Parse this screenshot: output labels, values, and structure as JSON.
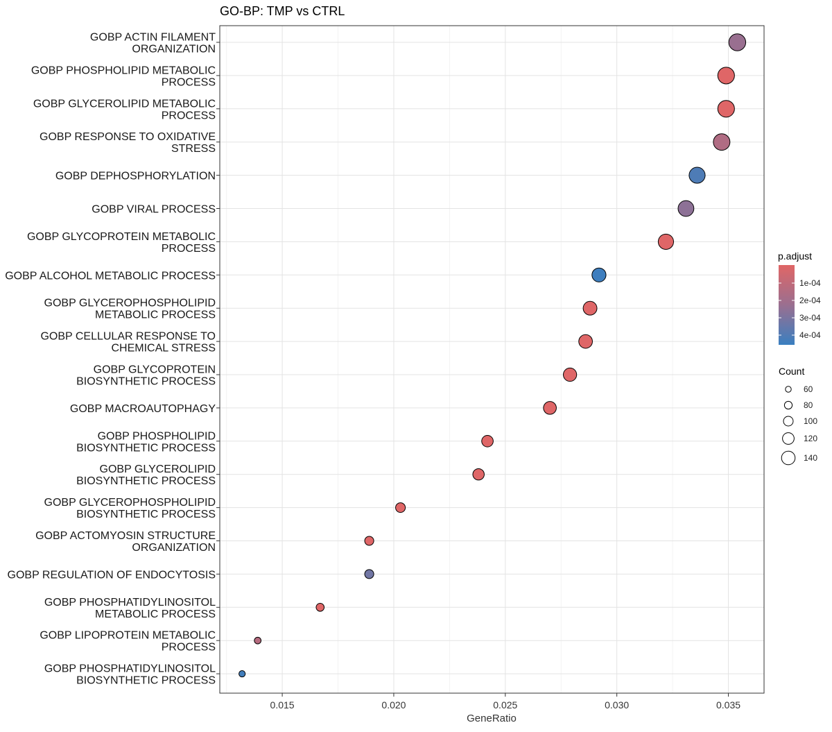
{
  "chart_data": {
    "type": "scatter",
    "title": "GO-BP: TMP vs CTRL",
    "xlabel": "GeneRatio",
    "ylabel": "",
    "xlim": [
      0.0122,
      0.0366
    ],
    "xticks": [
      "0.015",
      "0.020",
      "0.025",
      "0.030",
      "0.035"
    ],
    "grid": true,
    "legend_position": "right",
    "color_legend": {
      "title": "p.adjust",
      "labels": [
        "1e-04",
        "2e-04",
        "3e-04",
        "4e-04"
      ],
      "high_color": "#e06666",
      "low_color": "#3a7fc0"
    },
    "size_legend": {
      "title": "Count",
      "labels": [
        "60",
        "80",
        "100",
        "120",
        "140"
      ]
    },
    "points": [
      {
        "term": [
          "GOBP ACTIN FILAMENT",
          "ORGANIZATION"
        ],
        "gene_ratio": 0.0354,
        "count": 150,
        "p_adjust": 0.00025
      },
      {
        "term": [
          "GOBP PHOSPHOLIPID METABOLIC",
          "PROCESS"
        ],
        "gene_ratio": 0.0349,
        "count": 148,
        "p_adjust": 1e-05
      },
      {
        "term": [
          "GOBP GLYCEROLIPID METABOLIC",
          "PROCESS"
        ],
        "gene_ratio": 0.0349,
        "count": 148,
        "p_adjust": 1e-05
      },
      {
        "term": [
          "GOBP RESPONSE TO OXIDATIVE",
          "STRESS"
        ],
        "gene_ratio": 0.0347,
        "count": 147,
        "p_adjust": 0.00017
      },
      {
        "term": [
          "GOBP DEPHOSPHORYLATION"
        ],
        "gene_ratio": 0.0336,
        "count": 142,
        "p_adjust": 0.00044
      },
      {
        "term": [
          "GOBP VIRAL PROCESS"
        ],
        "gene_ratio": 0.0331,
        "count": 140,
        "p_adjust": 0.00028
      },
      {
        "term": [
          "GOBP GLYCOPROTEIN METABOLIC",
          "PROCESS"
        ],
        "gene_ratio": 0.0322,
        "count": 136,
        "p_adjust": 1e-05
      },
      {
        "term": [
          "GOBP ALCOHOL METABOLIC PROCESS"
        ],
        "gene_ratio": 0.0292,
        "count": 124,
        "p_adjust": 0.00048
      },
      {
        "term": [
          "GOBP GLYCEROPHOSPHOLIPID",
          "METABOLIC PROCESS"
        ],
        "gene_ratio": 0.0288,
        "count": 122,
        "p_adjust": 1e-05
      },
      {
        "term": [
          "GOBP CELLULAR RESPONSE TO",
          "CHEMICAL STRESS"
        ],
        "gene_ratio": 0.0286,
        "count": 121,
        "p_adjust": 1e-05
      },
      {
        "term": [
          "GOBP GLYCOPROTEIN",
          "BIOSYNTHETIC PROCESS"
        ],
        "gene_ratio": 0.0279,
        "count": 118,
        "p_adjust": 1e-05
      },
      {
        "term": [
          "GOBP MACROAUTOPHAGY"
        ],
        "gene_ratio": 0.027,
        "count": 114,
        "p_adjust": 1e-05
      },
      {
        "term": [
          "GOBP PHOSPHOLIPID",
          "BIOSYNTHETIC PROCESS"
        ],
        "gene_ratio": 0.0242,
        "count": 102,
        "p_adjust": 1e-05
      },
      {
        "term": [
          "GOBP GLYCEROLIPID",
          "BIOSYNTHETIC PROCESS"
        ],
        "gene_ratio": 0.0238,
        "count": 101,
        "p_adjust": 1e-05
      },
      {
        "term": [
          "GOBP GLYCEROPHOSPHOLIPID",
          "BIOSYNTHETIC PROCESS"
        ],
        "gene_ratio": 0.0203,
        "count": 86,
        "p_adjust": 1e-05
      },
      {
        "term": [
          "GOBP ACTOMYOSIN STRUCTURE",
          "ORGANIZATION"
        ],
        "gene_ratio": 0.0189,
        "count": 80,
        "p_adjust": 1e-05
      },
      {
        "term": [
          "GOBP REGULATION OF ENDOCYTOSIS"
        ],
        "gene_ratio": 0.0189,
        "count": 80,
        "p_adjust": 0.00035
      },
      {
        "term": [
          "GOBP PHOSPHATIDYLINOSITOL",
          "METABOLIC PROCESS"
        ],
        "gene_ratio": 0.0167,
        "count": 71,
        "p_adjust": 1e-05
      },
      {
        "term": [
          "GOBP LIPOPROTEIN METABOLIC",
          "PROCESS"
        ],
        "gene_ratio": 0.0139,
        "count": 59,
        "p_adjust": 0.00015
      },
      {
        "term": [
          "GOBP PHOSPHATIDYLINOSITOL",
          "BIOSYNTHETIC PROCESS"
        ],
        "gene_ratio": 0.0132,
        "count": 56,
        "p_adjust": 0.00047
      }
    ]
  }
}
